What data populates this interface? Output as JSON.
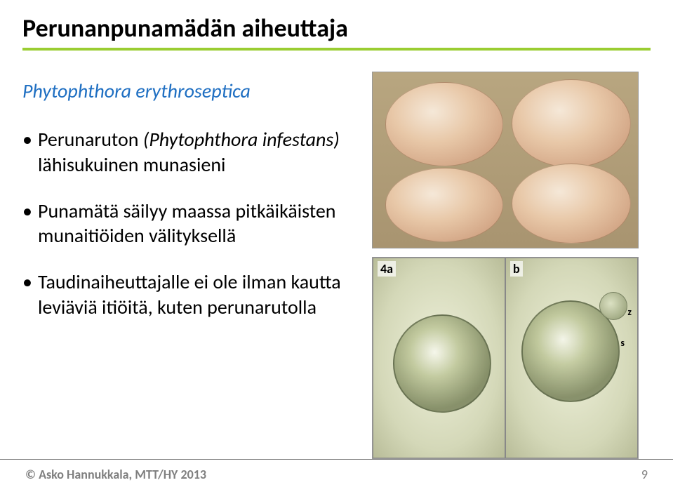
{
  "title": "Perunanpunamädän aiheuttaja",
  "subtitle": "Phytophthora erythroseptica",
  "subtitle_color": "#1f6fc2",
  "accent_rule_color": "#9acd32",
  "bullets": [
    {
      "pre": "Perunaruton ",
      "italic": "(Phytophthora infestans)",
      "post": " lähisukuinen munasieni"
    },
    {
      "pre": "Punamätä säilyy maassa pitkäikäisten munaitiöiden välityksellä",
      "italic": "",
      "post": ""
    },
    {
      "pre": "Taudinaiheuttajalle ei ole ilman kautta leviäviä itiöitä, kuten perunarutolla",
      "italic": "",
      "post": ""
    }
  ],
  "images": {
    "top": {
      "name": "potato-cross-sections",
      "labels": []
    },
    "bottom": {
      "name": "oospore-micrographs",
      "panel_a": "4a",
      "panel_b": "b",
      "mark_s": "s",
      "mark_z": "z"
    }
  },
  "footer": {
    "copyright": "© Asko Hannukkala, MTT/HY 2013",
    "page": "9"
  },
  "body_font_size": 28,
  "title_font_size": 36,
  "footer_color": "#7f7f7f"
}
